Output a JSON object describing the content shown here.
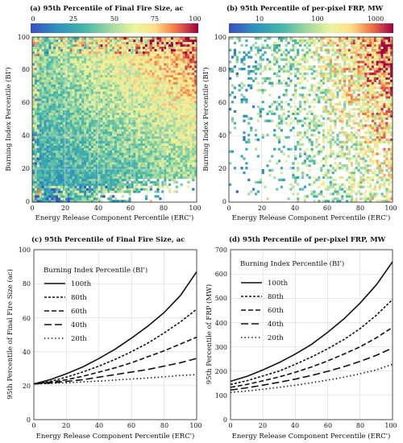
{
  "chart_data": [
    {
      "id": "a",
      "type": "heatmap",
      "title": "(a) 95th Percentile of Final Fire Size, ac",
      "xlabel": "Energy Release Component Percentile (ERC')",
      "ylabel": "Burning Index Percentile (BI')",
      "xlim": [
        0,
        100
      ],
      "ylim": [
        0,
        100
      ],
      "xticks": [
        "0",
        "20",
        "40",
        "60",
        "80",
        "100"
      ],
      "yticks": [
        "0",
        "20",
        "40",
        "60",
        "80",
        "100"
      ],
      "colorbar": {
        "scale": "linear",
        "min": 0,
        "max": 100,
        "ticks": [
          "0",
          "25",
          "50",
          "75",
          "100"
        ]
      },
      "grid": true
    },
    {
      "id": "b",
      "type": "heatmap",
      "title": "(b) 95th Percentile of per-pixel FRP, MW",
      "xlabel": "Energy Release Component Percentile (ERC')",
      "ylabel": "Burning Index Percentile (BI')",
      "xlim": [
        0,
        100
      ],
      "ylim": [
        0,
        100
      ],
      "xticks": [
        "0",
        "20",
        "40",
        "60",
        "80",
        "100"
      ],
      "yticks": [
        "0",
        "20",
        "40",
        "60",
        "80",
        "100"
      ],
      "colorbar": {
        "scale": "log",
        "min": 3,
        "max": 2000,
        "ticks": [
          "10",
          "100",
          "1000"
        ]
      },
      "grid": true
    },
    {
      "id": "c",
      "type": "line",
      "title": "(c) 95th Percentile of Final Fire Size, ac",
      "xlabel": "Energy Release Component Percentile (ERC')",
      "ylabel": "95th Percentile of Final Fire Size (ac)",
      "xlim": [
        0,
        100
      ],
      "ylim": [
        0,
        100
      ],
      "xticks": [
        "0",
        "20",
        "40",
        "60",
        "80",
        "100"
      ],
      "yticks": [
        "0",
        "20",
        "40",
        "60",
        "80",
        "100"
      ],
      "grid": true,
      "legend": {
        "title": "Burning Index Percentile (BI')",
        "position": "upper-left"
      },
      "x": [
        0,
        10,
        20,
        30,
        40,
        50,
        60,
        70,
        80,
        90,
        100
      ],
      "series": [
        {
          "name": "100th",
          "style": "solid",
          "values": [
            21,
            23.5,
            27,
            31,
            36,
            41.5,
            48,
            55,
            63,
            73,
            87
          ]
        },
        {
          "name": "80th",
          "style": "dense-dash",
          "values": [
            21,
            22.5,
            25,
            28,
            31.5,
            35.5,
            40,
            45,
            51,
            57.5,
            65
          ]
        },
        {
          "name": "60th",
          "style": "dash",
          "values": [
            21,
            22,
            23.5,
            25.5,
            28,
            30.5,
            33.5,
            37,
            40.5,
            44.5,
            48.5
          ]
        },
        {
          "name": "40th",
          "style": "long-dash",
          "values": [
            21,
            21.5,
            22.5,
            23.5,
            25,
            26.5,
            28,
            29.5,
            31.5,
            33.5,
            36
          ]
        },
        {
          "name": "20th",
          "style": "dotted",
          "values": [
            21,
            21.3,
            21.7,
            22.2,
            22.7,
            23.3,
            23.9,
            24.5,
            25.2,
            26,
            26.5
          ]
        }
      ]
    },
    {
      "id": "d",
      "type": "line",
      "title": "(d) 95th Percentile of per-pixel FRP, MW",
      "xlabel": "Energy Release Component Percentile (ERC')",
      "ylabel": "95th Percentile of FRP (MW)",
      "xlim": [
        0,
        100
      ],
      "ylim": [
        0,
        700
      ],
      "xticks": [
        "0",
        "20",
        "40",
        "60",
        "80",
        "100"
      ],
      "yticks": [
        "0",
        "100",
        "200",
        "300",
        "400",
        "500",
        "600",
        "700"
      ],
      "grid": true,
      "legend": {
        "title": "Burning Index Percentile (BI')",
        "position": "upper-left"
      },
      "x": [
        0,
        10,
        20,
        30,
        40,
        50,
        60,
        70,
        80,
        90,
        100
      ],
      "series": [
        {
          "name": "100th",
          "style": "solid",
          "values": [
            158,
            178,
            205,
            235,
            270,
            310,
            360,
            415,
            480,
            555,
            650
          ]
        },
        {
          "name": "80th",
          "style": "dense-dash",
          "values": [
            145,
            160,
            180,
            200,
            228,
            258,
            292,
            330,
            375,
            430,
            495
          ]
        },
        {
          "name": "60th",
          "style": "dash",
          "values": [
            133,
            145,
            160,
            176,
            195,
            217,
            242,
            270,
            300,
            337,
            380
          ]
        },
        {
          "name": "40th",
          "style": "long-dash",
          "values": [
            122,
            131,
            142,
            154,
            167,
            182,
            199,
            218,
            240,
            265,
            295
          ]
        },
        {
          "name": "20th",
          "style": "dotted",
          "values": [
            112,
            118,
            125,
            133,
            142,
            152,
            163,
            175,
            189,
            205,
            228
          ]
        }
      ]
    }
  ]
}
